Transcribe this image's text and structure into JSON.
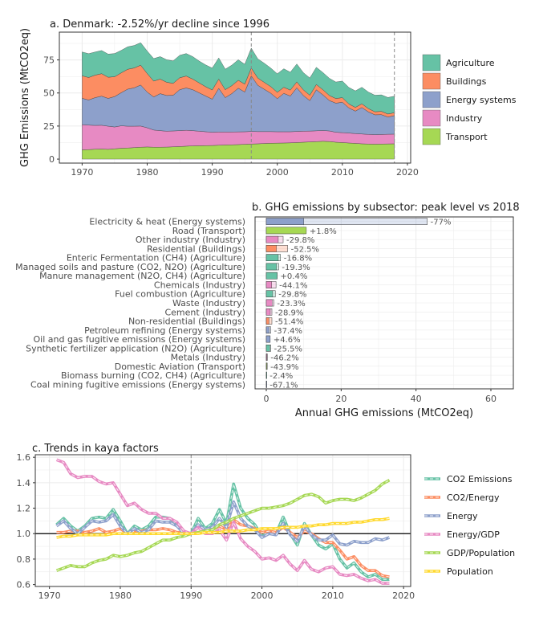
{
  "chart_data": [
    {
      "type": "area",
      "title": "a. Denmark: -2.52%/yr decline since 1996",
      "xlabel": "",
      "ylabel": "GHG Emissions (MtCO2eq)",
      "xlim": [
        1966.5,
        2020.5
      ],
      "ylim": [
        -3,
        96
      ],
      "xticks": [
        1970,
        1980,
        1990,
        2000,
        2010,
        2020
      ],
      "yticks": [
        0,
        25,
        50,
        75
      ],
      "vlines": [
        1996,
        2018
      ],
      "grid": true,
      "legend_position": "right",
      "x": [
        1970,
        1971,
        1972,
        1973,
        1974,
        1975,
        1976,
        1977,
        1978,
        1979,
        1980,
        1981,
        1982,
        1983,
        1984,
        1985,
        1986,
        1987,
        1988,
        1989,
        1990,
        1991,
        1992,
        1993,
        1994,
        1995,
        1996,
        1997,
        1998,
        1999,
        2000,
        2001,
        2002,
        2003,
        2004,
        2005,
        2006,
        2007,
        2008,
        2009,
        2010,
        2011,
        2012,
        2013,
        2014,
        2015,
        2016,
        2017,
        2018
      ],
      "series": [
        {
          "name": "Transport",
          "color": "#a6d854",
          "values": [
            7,
            7.2,
            7.5,
            7.6,
            7.4,
            7.8,
            8.2,
            8.4,
            8.7,
            9,
            9.2,
            9,
            9,
            9.1,
            9.3,
            9.5,
            9.8,
            10,
            10.1,
            10.2,
            10.3,
            10.5,
            10.7,
            10.8,
            11,
            11.2,
            11.4,
            11.6,
            11.8,
            12,
            12.1,
            12.2,
            12.3,
            12.5,
            12.8,
            13,
            13.2,
            13.5,
            13.3,
            12.8,
            12.5,
            12.2,
            11.9,
            11.6,
            11.4,
            11.3,
            11.4,
            11.5,
            11.6
          ]
        },
        {
          "name": "Industry",
          "color": "#e78ac3",
          "values": [
            19,
            18.5,
            18,
            18,
            17.5,
            16.5,
            17,
            16.5,
            16.2,
            16,
            14.5,
            13,
            12.5,
            12,
            12,
            12,
            12,
            11.5,
            11,
            10.5,
            10,
            10,
            9.8,
            9.7,
            9.6,
            9.5,
            9.5,
            9.2,
            9,
            8.8,
            8.6,
            8.5,
            8.4,
            8.4,
            8.3,
            8.2,
            8.2,
            8.1,
            8,
            7.5,
            7.5,
            7.5,
            7.4,
            7.4,
            7.3,
            7.2,
            7.2,
            7.3,
            7.3
          ]
        },
        {
          "name": "Energy systems",
          "color": "#8da0cb",
          "values": [
            20,
            19,
            21,
            22,
            21,
            23,
            25,
            28,
            29,
            31,
            27,
            25,
            28,
            27,
            27,
            31,
            32,
            31,
            29,
            27,
            25,
            33,
            26,
            29,
            33,
            30,
            42,
            35,
            32,
            29,
            25,
            29,
            27,
            33,
            27,
            23,
            31,
            27,
            23,
            22,
            23,
            19,
            17,
            20,
            17,
            15,
            15,
            13,
            14
          ]
        },
        {
          "name": "Buildings",
          "color": "#fc8d62",
          "values": [
            17,
            17,
            17,
            17,
            16,
            15,
            15,
            15,
            15,
            15,
            14,
            12,
            11,
            10,
            9,
            9,
            9,
            8,
            7.5,
            7,
            7,
            7,
            6,
            6,
            6,
            6,
            6,
            5.5,
            5.2,
            5,
            4.8,
            4.6,
            4.5,
            4.5,
            4.3,
            4.1,
            4,
            3.9,
            3.8,
            3.5,
            3.5,
            3,
            2.8,
            2.8,
            2.5,
            2.3,
            2.5,
            2.3,
            2.2
          ]
        },
        {
          "name": "Agriculture",
          "color": "#66c2a5",
          "values": [
            18,
            18,
            17.5,
            17.5,
            17.5,
            17.5,
            17,
            17,
            17,
            17,
            17,
            17,
            17,
            17,
            17,
            17,
            17,
            17,
            16.5,
            16.5,
            16.5,
            16,
            15.5,
            15.5,
            15.5,
            15,
            15,
            14.5,
            14.5,
            14,
            14,
            14,
            13.5,
            13.5,
            13,
            13,
            13,
            13,
            13,
            12.5,
            12.5,
            12.5,
            12.5,
            12.5,
            12.5,
            12.5,
            12.5,
            12.5,
            12.5
          ]
        }
      ]
    },
    {
      "type": "bar",
      "orientation": "horizontal",
      "title": "b. GHG emissions by subsector: peak level vs 2018",
      "xlabel": "Annual GHG emissions (MtCO2eq)",
      "ylabel": "",
      "xlim": [
        -3,
        66
      ],
      "xticks": [
        0,
        20,
        40,
        60
      ],
      "grid": true,
      "categories": [
        "Electricity & heat (Energy systems)",
        "Road (Transport)",
        "Other industry (Industry)",
        "Residential (Buildings)",
        "Enteric Fermentation (CH4) (Agriculture)",
        "Managed soils and pasture (CO2, N2O) (Agriculture)",
        "Manure management (N2O, CH4) (Agriculture)",
        "Chemicals (Industry)",
        "Fuel combustion (Agriculture)",
        "Waste (Industry)",
        "Cement (Industry)",
        "Non-residential (Buildings)",
        "Petroleum refining (Energy systems)",
        "Oil and gas fugitive emissions (Energy systems)",
        "Synthetic fertilizer application (N2O) (Agriculture)",
        "Metals (Industry)",
        "Domestic Aviation (Transport)",
        "Biomass burning (CO2, CH4) (Agriculture)",
        "Coal mining fugitive emissions (Energy systems)"
      ],
      "peak_values": [
        43,
        10.5,
        4.5,
        5.7,
        3.8,
        3.3,
        2.9,
        2.6,
        2.4,
        2.0,
        1.5,
        1.5,
        1.2,
        1.0,
        1.2,
        0.3,
        0.25,
        0.05,
        0.05
      ],
      "values_2018": [
        10,
        10.7,
        3.2,
        2.7,
        3.2,
        2.7,
        2.9,
        1.45,
        1.7,
        1.55,
        1.07,
        0.73,
        0.75,
        1.05,
        0.9,
        0.16,
        0.14,
        0.05,
        0.02
      ],
      "labels": [
        "-77%",
        "+1.8%",
        "-29.8%",
        "-52.5%",
        "-16.8%",
        "-19.3%",
        "+0.4%",
        "-44.1%",
        "-29.8%",
        "-23.3%",
        "-28.9%",
        "-51.4%",
        "-37.4%",
        "+4.6%",
        "-25.5%",
        "-46.2%",
        "-43.9%",
        "-2.4%",
        "-67.1%"
      ],
      "sector_colors": {
        "Energy systems": "#8da0cb",
        "Transport": "#a6d854",
        "Industry": "#e78ac3",
        "Buildings": "#fc8d62",
        "Agriculture": "#66c2a5"
      },
      "sectors": [
        "Energy systems",
        "Transport",
        "Industry",
        "Buildings",
        "Agriculture",
        "Agriculture",
        "Agriculture",
        "Industry",
        "Agriculture",
        "Industry",
        "Industry",
        "Buildings",
        "Energy systems",
        "Energy systems",
        "Agriculture",
        "Industry",
        "Transport",
        "Agriculture",
        "Energy systems"
      ]
    },
    {
      "type": "line",
      "title": "c. Trends in kaya factors",
      "xlabel": "",
      "ylabel": "",
      "xlim": [
        1968,
        2021
      ],
      "ylim": [
        0.585,
        1.62
      ],
      "xticks": [
        1970,
        1980,
        1990,
        2000,
        2010,
        2020
      ],
      "yticks": [
        0.6,
        0.8,
        1.0,
        1.2,
        1.4,
        1.6
      ],
      "hline": 1.0,
      "vlines": [
        1990
      ],
      "grid": true,
      "legend_position": "right",
      "x": [
        1971,
        1972,
        1973,
        1974,
        1975,
        1976,
        1977,
        1978,
        1979,
        1980,
        1981,
        1982,
        1983,
        1984,
        1985,
        1986,
        1987,
        1988,
        1989,
        1990,
        1991,
        1992,
        1993,
        1994,
        1995,
        1996,
        1997,
        1998,
        1999,
        2000,
        2001,
        2002,
        2003,
        2004,
        2005,
        2006,
        2007,
        2008,
        2009,
        2010,
        2011,
        2012,
        2013,
        2014,
        2015,
        2016,
        2017,
        2018
      ],
      "series": [
        {
          "name": "CO2 Emissions",
          "color": "#66c2a5",
          "values": [
            1.07,
            1.12,
            1.06,
            1.02,
            1.06,
            1.12,
            1.13,
            1.12,
            1.19,
            1.1,
            1.0,
            1.06,
            1.03,
            1.06,
            1.13,
            1.13,
            1.12,
            1.07,
            1.01,
            1.0,
            1.12,
            1.04,
            1.08,
            1.19,
            1.08,
            1.39,
            1.2,
            1.12,
            1.07,
            0.98,
            1.02,
            1.0,
            1.13,
            1.0,
            0.91,
            1.08,
            0.99,
            0.91,
            0.88,
            0.92,
            0.8,
            0.73,
            0.77,
            0.7,
            0.66,
            0.68,
            0.64,
            0.64
          ]
        },
        {
          "name": "CO2/Energy",
          "color": "#fc8d62",
          "values": [
            1.01,
            1.01,
            1.02,
            1.02,
            1.01,
            1.02,
            1.04,
            1.01,
            1.02,
            1.04,
            1.0,
            1.02,
            1.02,
            1.03,
            1.03,
            1.04,
            1.03,
            1.01,
            1.01,
            1.0,
            1.05,
            1.01,
            1.03,
            1.06,
            1.03,
            1.11,
            1.07,
            1.06,
            1.04,
            1.01,
            1.02,
            1.01,
            1.05,
            1.01,
            0.97,
            1.02,
            1.0,
            0.96,
            0.93,
            0.93,
            0.87,
            0.8,
            0.82,
            0.75,
            0.71,
            0.71,
            0.67,
            0.66
          ]
        },
        {
          "name": "Energy",
          "color": "#8da0cb",
          "values": [
            1.06,
            1.1,
            1.04,
            1.0,
            1.05,
            1.1,
            1.09,
            1.1,
            1.15,
            1.06,
            1.0,
            1.04,
            1.01,
            1.03,
            1.1,
            1.09,
            1.09,
            1.06,
            1.0,
            1.0,
            1.07,
            1.03,
            1.05,
            1.12,
            1.05,
            1.25,
            1.12,
            1.06,
            1.03,
            0.97,
            1.0,
            0.99,
            1.08,
            0.99,
            0.94,
            1.06,
            0.99,
            0.95,
            0.95,
            0.99,
            0.92,
            0.91,
            0.94,
            0.93,
            0.93,
            0.96,
            0.95,
            0.97
          ]
        },
        {
          "name": "Energy/GDP",
          "color": "#e78ac3",
          "values": [
            1.58,
            1.56,
            1.47,
            1.44,
            1.45,
            1.45,
            1.41,
            1.39,
            1.4,
            1.31,
            1.22,
            1.24,
            1.19,
            1.16,
            1.16,
            1.12,
            1.12,
            1.09,
            1.02,
            1.0,
            1.05,
            1.0,
            1.0,
            1.03,
            0.95,
            1.09,
            0.96,
            0.9,
            0.86,
            0.8,
            0.81,
            0.79,
            0.83,
            0.76,
            0.71,
            0.79,
            0.72,
            0.7,
            0.73,
            0.74,
            0.68,
            0.67,
            0.68,
            0.65,
            0.63,
            0.64,
            0.61,
            0.61
          ]
        },
        {
          "name": "GDP/Population",
          "color": "#a6d854",
          "values": [
            0.71,
            0.73,
            0.75,
            0.74,
            0.74,
            0.77,
            0.79,
            0.8,
            0.83,
            0.82,
            0.83,
            0.85,
            0.86,
            0.89,
            0.92,
            0.95,
            0.95,
            0.97,
            0.98,
            1.0,
            1.01,
            1.02,
            1.03,
            1.07,
            1.09,
            1.12,
            1.14,
            1.16,
            1.18,
            1.2,
            1.2,
            1.21,
            1.22,
            1.24,
            1.27,
            1.3,
            1.31,
            1.29,
            1.24,
            1.26,
            1.27,
            1.27,
            1.26,
            1.28,
            1.31,
            1.34,
            1.39,
            1.42
          ]
        },
        {
          "name": "Population",
          "color": "#ffd92f",
          "values": [
            0.97,
            0.98,
            0.98,
            0.99,
            0.99,
            0.99,
            0.99,
            0.99,
            1.0,
            1.0,
            1.0,
            1.0,
            1.0,
            1.0,
            1.0,
            1.0,
            1.0,
            1.0,
            1.0,
            1.0,
            1.0,
            1.01,
            1.01,
            1.01,
            1.02,
            1.02,
            1.02,
            1.03,
            1.03,
            1.04,
            1.04,
            1.04,
            1.05,
            1.05,
            1.05,
            1.06,
            1.06,
            1.07,
            1.07,
            1.08,
            1.08,
            1.08,
            1.09,
            1.09,
            1.1,
            1.11,
            1.11,
            1.12
          ]
        }
      ]
    }
  ]
}
